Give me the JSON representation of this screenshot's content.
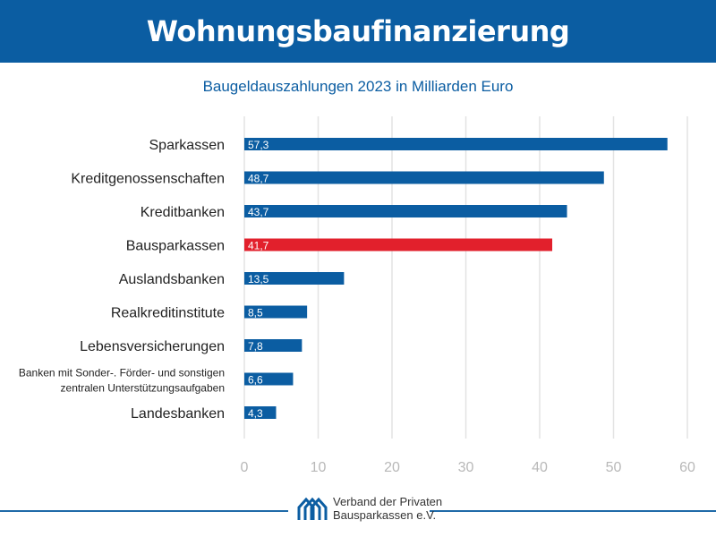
{
  "header": {
    "title": "Wohnungsbaufinanzierung"
  },
  "chart_data": {
    "type": "bar",
    "orientation": "horizontal",
    "title": "Wohnungsbaufinanzierung",
    "subtitle": "Baugeldauszahlungen 2023 in Milliarden Euro",
    "categories": [
      "Sparkassen",
      "Kreditgenossenschaften",
      "Kreditbanken",
      "Bausparkassen",
      "Auslandsbanken",
      "Realkreditinstitute",
      "Lebensversicherungen",
      "Banken mit Sonder-. Förder- und sonstigen zentralen Unterstützungsaufgaben",
      "Landesbanken"
    ],
    "category_lines": [
      [
        "Sparkassen"
      ],
      [
        "Kreditgenossenschaften"
      ],
      [
        "Kreditbanken"
      ],
      [
        "Bausparkassen"
      ],
      [
        "Auslandsbanken"
      ],
      [
        "Realkreditinstitute"
      ],
      [
        "Lebensversicherungen"
      ],
      [
        "Banken mit Sonder-. Förder- und sonstigen",
        "zentralen Unterstützungsaufgaben"
      ],
      [
        "Landesbanken"
      ]
    ],
    "values": [
      57.3,
      48.7,
      43.7,
      41.7,
      13.5,
      8.5,
      7.8,
      6.6,
      4.3
    ],
    "data_labels": [
      "57,3",
      "48,7",
      "43,7",
      "41,7",
      "13,5",
      "8,5",
      "7,8",
      "6,6",
      "4,3"
    ],
    "highlight_index": 3,
    "xlim": [
      0,
      60
    ],
    "xticks": [
      0,
      10,
      20,
      30,
      40,
      50,
      60
    ],
    "xtick_labels": [
      "0",
      "10",
      "20",
      "30",
      "40",
      "50",
      "60"
    ],
    "grid": true,
    "colors": {
      "bar": "#0b5da2",
      "highlight": "#e2202c",
      "grid": "#e3e3e3",
      "tick": "#b8b8b8"
    }
  },
  "footer": {
    "logo_line1": "Verband der Privaten",
    "logo_line2": "Bausparkassen e.V."
  }
}
